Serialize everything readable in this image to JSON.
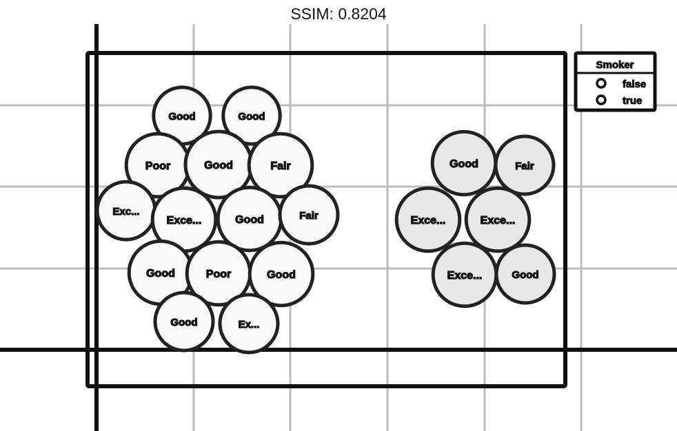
{
  "header": {
    "metric": "SSIM: 0.8204"
  },
  "chart_data": {
    "type": "packed-bubble",
    "title": "",
    "xlabel": "",
    "ylabel": "",
    "grid": true,
    "legend_position": "top-right",
    "legend": {
      "title": "Smoker",
      "entries": [
        "false",
        "true"
      ]
    },
    "colors": {
      "false": "#fafafa",
      "true": "#e8e8e8",
      "outline": "#222222"
    },
    "series": [
      {
        "name": "false",
        "points": [
          {
            "label": "Good",
            "value": 50
          },
          {
            "label": "Good",
            "value": 50
          },
          {
            "label": "Poor",
            "value": 62
          },
          {
            "label": "Good",
            "value": 68
          },
          {
            "label": "Fair",
            "value": 62
          },
          {
            "label": "Exc...",
            "value": 52
          },
          {
            "label": "Exce...",
            "value": 62
          },
          {
            "label": "Good",
            "value": 62
          },
          {
            "label": "Fair",
            "value": 52
          },
          {
            "label": "Good",
            "value": 62
          },
          {
            "label": "Poor",
            "value": 62
          },
          {
            "label": "Good",
            "value": 62
          },
          {
            "label": "Good",
            "value": 52
          },
          {
            "label": "Ex...",
            "value": 52
          }
        ]
      },
      {
        "name": "true",
        "points": [
          {
            "label": "Good",
            "value": 62
          },
          {
            "label": "Fair",
            "value": 52
          },
          {
            "label": "Exce...",
            "value": 62
          },
          {
            "label": "Exce...",
            "value": 62
          },
          {
            "label": "Exce...",
            "value": 62
          },
          {
            "label": "Good",
            "value": 52
          }
        ]
      }
    ]
  }
}
